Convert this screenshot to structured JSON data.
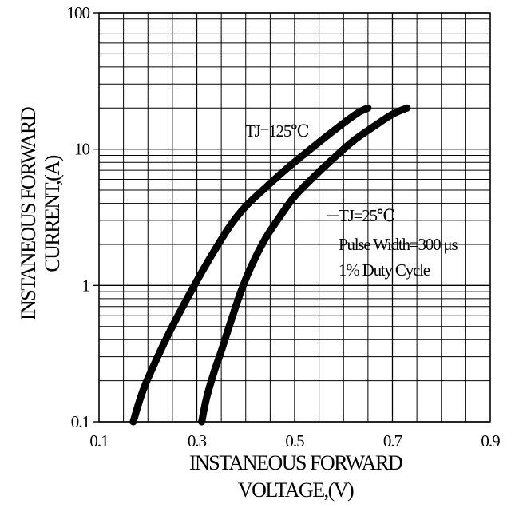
{
  "chart_data": {
    "type": "line",
    "title": "",
    "xlabel_lines": [
      "INSTANEOUS FORWARD",
      "VOLTAGE,(V)"
    ],
    "ylabel_lines": [
      "INSTANEOUS FORWARD",
      "CURRENT,(A)"
    ],
    "xlim": [
      0.1,
      0.9
    ],
    "ylim": [
      0.1,
      100
    ],
    "yscale": "log",
    "grid": true,
    "x_ticks": [
      0.1,
      0.3,
      0.5,
      0.7,
      0.9
    ],
    "x_tick_labels": [
      "0.1",
      "0.3",
      "0.5",
      "0.7",
      "0.9"
    ],
    "y_ticks": [
      0.1,
      1,
      10,
      100
    ],
    "y_tick_labels": [
      "0.1",
      "1",
      "10",
      "100"
    ],
    "series": [
      {
        "name": "TJ=125℃",
        "x": [
          0.17,
          0.19,
          0.22,
          0.25,
          0.28,
          0.31,
          0.34,
          0.37,
          0.4,
          0.44,
          0.48,
          0.52,
          0.56,
          0.6,
          0.63,
          0.65
        ],
        "y": [
          0.1,
          0.17,
          0.3,
          0.5,
          0.8,
          1.25,
          1.9,
          2.8,
          3.8,
          5.2,
          7.0,
          9.2,
          12,
          15.5,
          18.5,
          20
        ]
      },
      {
        "name": "TJ=25℃",
        "x": [
          0.31,
          0.32,
          0.335,
          0.35,
          0.37,
          0.39,
          0.41,
          0.44,
          0.47,
          0.5,
          0.54,
          0.58,
          0.62,
          0.66,
          0.7,
          0.73
        ],
        "y": [
          0.1,
          0.15,
          0.23,
          0.33,
          0.55,
          0.9,
          1.35,
          2.2,
          3.2,
          4.5,
          6.3,
          8.6,
          11.5,
          14.5,
          18,
          20
        ]
      }
    ],
    "annotations": [
      "TJ=125℃",
      "TJ=25℃",
      "Pulse Width=300 μs",
      "1% Duty Cycle"
    ],
    "colors": {
      "curve": "#000000",
      "grid": "#000000",
      "background": "#ffffff"
    }
  }
}
